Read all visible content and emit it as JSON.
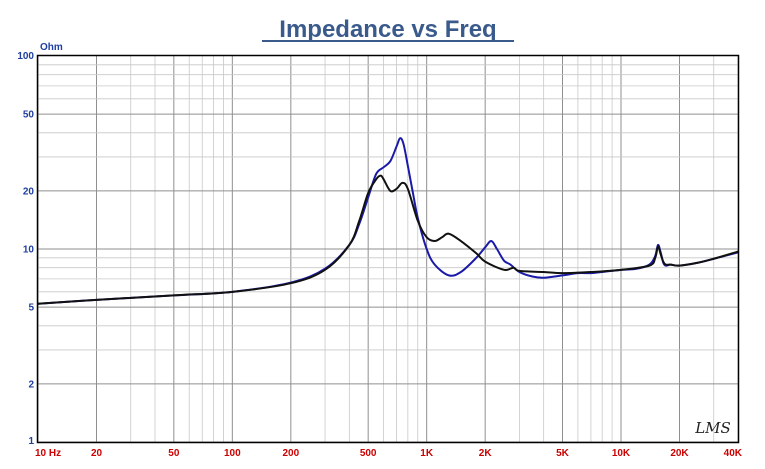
{
  "chart_data": {
    "type": "line",
    "title": "Impedance vs Freq",
    "y_unit_label": "Ohm",
    "x_scale": "log",
    "y_scale": "log",
    "xlim": [
      10,
      40000
    ],
    "ylim": [
      1,
      100
    ],
    "grid": true,
    "x_tick_labels": [
      {
        "value": 10,
        "label": "10  Hz"
      },
      {
        "value": 20,
        "label": "20"
      },
      {
        "value": 50,
        "label": "50"
      },
      {
        "value": 100,
        "label": "100"
      },
      {
        "value": 200,
        "label": "200"
      },
      {
        "value": 500,
        "label": "500"
      },
      {
        "value": 1000,
        "label": "1K"
      },
      {
        "value": 2000,
        "label": "2K"
      },
      {
        "value": 5000,
        "label": "5K"
      },
      {
        "value": 10000,
        "label": "10K"
      },
      {
        "value": 20000,
        "label": "20K"
      },
      {
        "value": 40000,
        "label": "40K"
      }
    ],
    "y_tick_labels": [
      {
        "value": 100,
        "label": "100"
      },
      {
        "value": 50,
        "label": "50"
      },
      {
        "value": 20,
        "label": "20"
      },
      {
        "value": 10,
        "label": "10"
      },
      {
        "value": 5,
        "label": "5"
      },
      {
        "value": 2,
        "label": "2"
      },
      {
        "value": 1,
        "label": "1"
      }
    ],
    "watermark": "LMS",
    "series": [
      {
        "color": "#1a1aa8",
        "x": [
          10,
          20,
          50,
          100,
          200,
          300,
          400,
          450,
          500,
          550,
          600,
          650,
          700,
          730,
          760,
          800,
          850,
          900,
          1000,
          1100,
          1300,
          1500,
          1800,
          2000,
          2150,
          2300,
          2500,
          2700,
          3000,
          3500,
          4000,
          5000,
          6000,
          7000,
          8000,
          10000,
          12000,
          14000,
          15000,
          15500,
          16000,
          16500,
          17000,
          18000,
          20000,
          25000,
          30000,
          40000
        ],
        "y": [
          5.2,
          5.45,
          5.75,
          6.0,
          6.7,
          7.9,
          10.5,
          13.5,
          18.5,
          24.5,
          26.5,
          28.5,
          34.0,
          37.5,
          35.0,
          27.0,
          19.5,
          14.5,
          10.0,
          8.3,
          7.3,
          7.6,
          9.0,
          10.2,
          11.0,
          10.0,
          8.7,
          8.3,
          7.6,
          7.2,
          7.1,
          7.3,
          7.5,
          7.5,
          7.6,
          7.8,
          7.9,
          8.3,
          9.2,
          10.5,
          9.6,
          8.5,
          8.2,
          8.3,
          8.2,
          8.5,
          8.9,
          9.6
        ]
      },
      {
        "color": "#111111",
        "x": [
          10,
          20,
          50,
          100,
          200,
          300,
          400,
          450,
          500,
          550,
          580,
          600,
          650,
          700,
          750,
          800,
          900,
          1000,
          1100,
          1200,
          1300,
          1500,
          1800,
          2000,
          2500,
          2800,
          3000,
          4000,
          5000,
          7000,
          10000,
          14000,
          15000,
          15500,
          16000,
          16500,
          17000,
          18000,
          20000,
          25000,
          30000,
          40000
        ],
        "y": [
          5.2,
          5.45,
          5.75,
          6.0,
          6.65,
          7.8,
          10.5,
          14.0,
          19.5,
          23.0,
          24.0,
          23.0,
          20.0,
          20.5,
          22.0,
          20.5,
          14.0,
          11.5,
          11.0,
          11.5,
          12.0,
          11.0,
          9.5,
          8.6,
          7.8,
          8.0,
          7.7,
          7.6,
          7.5,
          7.6,
          7.8,
          8.2,
          9.0,
          10.3,
          9.4,
          8.6,
          8.3,
          8.3,
          8.2,
          8.5,
          8.9,
          9.7
        ]
      }
    ]
  }
}
